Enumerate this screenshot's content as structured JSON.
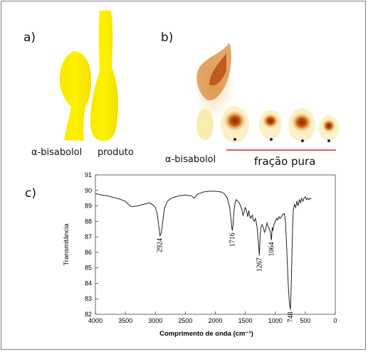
{
  "figure": {
    "panel_a": {
      "letter": "a)",
      "labels": [
        "α-bisabolol",
        "produto"
      ]
    },
    "panel_b": {
      "letter": "b)",
      "label_left": "α-bisabolol",
      "label_right": "fração pura"
    },
    "panel_c": {
      "letter": "c)"
    }
  },
  "chart_data": {
    "type": "line",
    "xlabel": "Comprimento de onda (cm⁻¹)",
    "ylabel": "Transmitância",
    "xlim": [
      4000,
      0
    ],
    "ylim": [
      82,
      91
    ],
    "xticks": [
      "4000",
      "3500",
      "3000",
      "2500",
      "2000",
      "1500",
      "1000",
      "500",
      "0"
    ],
    "yticks": [
      "82",
      "83",
      "84",
      "85",
      "86",
      "87",
      "88",
      "89",
      "90",
      "91"
    ],
    "annotations": [
      "2924",
      "1716",
      "1267",
      "1064",
      "748"
    ],
    "series": [
      {
        "x": [
          4000,
          3900,
          3800,
          3700,
          3600,
          3500,
          3450,
          3400,
          3300,
          3200,
          3100,
          3050,
          3000,
          2970,
          2940,
          2924,
          2900,
          2870,
          2850,
          2800,
          2750,
          2700,
          2600,
          2500,
          2400,
          2350,
          2300,
          2200,
          2100,
          2000,
          1900,
          1850,
          1800,
          1760,
          1740,
          1725,
          1716,
          1705,
          1690,
          1670,
          1650,
          1600,
          1560,
          1540,
          1520,
          1500,
          1480,
          1460,
          1450,
          1440,
          1430,
          1410,
          1400,
          1380,
          1370,
          1350,
          1330,
          1320,
          1300,
          1290,
          1280,
          1270,
          1267,
          1260,
          1250,
          1240,
          1220,
          1200,
          1180,
          1160,
          1140,
          1120,
          1100,
          1080,
          1070,
          1064,
          1060,
          1050,
          1040,
          1030,
          1000,
          980,
          960,
          940,
          920,
          900,
          880,
          860,
          850,
          840,
          830,
          820,
          810,
          800,
          790,
          780,
          770,
          760,
          750,
          748,
          745,
          740,
          730,
          720,
          710,
          700,
          680,
          660,
          640,
          620,
          600,
          580,
          560,
          540,
          520,
          500,
          480,
          460,
          440,
          420,
          400
        ],
        "y": [
          89.8,
          89.7,
          89.65,
          89.55,
          89.45,
          89.3,
          89.1,
          88.95,
          89.0,
          89.1,
          89.2,
          89.1,
          88.9,
          88.5,
          87.6,
          87.05,
          87.3,
          88.2,
          88.8,
          89.3,
          89.45,
          89.55,
          89.65,
          89.7,
          89.65,
          89.5,
          89.75,
          89.9,
          89.95,
          89.95,
          89.9,
          89.8,
          89.5,
          88.9,
          88.2,
          87.6,
          87.4,
          87.8,
          88.6,
          89.2,
          89.4,
          89.2,
          88.8,
          88.4,
          88.6,
          88.9,
          88.7,
          88.3,
          88.5,
          88.7,
          88.4,
          88.2,
          88.3,
          88.4,
          88.1,
          88.0,
          88.2,
          88.0,
          87.5,
          87.0,
          86.5,
          86.0,
          85.8,
          86.3,
          87.2,
          87.6,
          87.8,
          87.6,
          87.3,
          87.5,
          87.9,
          87.7,
          87.5,
          87.3,
          86.9,
          86.8,
          87.1,
          87.6,
          87.4,
          87.7,
          88.0,
          88.2,
          88.1,
          88.3,
          88.2,
          88.3,
          88.4,
          88.5,
          88.5,
          88.3,
          87.9,
          87.2,
          86.3,
          85.3,
          84.5,
          83.6,
          83.0,
          82.6,
          82.35,
          82.3,
          82.5,
          83.2,
          84.6,
          86.2,
          87.8,
          88.7,
          89.1,
          88.9,
          89.3,
          89.0,
          89.4,
          89.2,
          89.5,
          89.3,
          89.5,
          89.6,
          89.4,
          89.5,
          89.4,
          89.5,
          89.45
        ]
      }
    ]
  }
}
